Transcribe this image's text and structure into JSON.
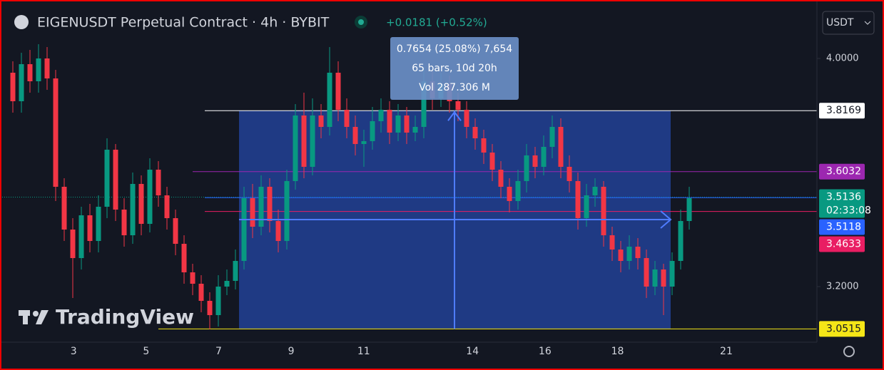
{
  "chart_data": {
    "type": "candlestick",
    "title": "EIGENUSDT Perpetual Contract · 4h · BYBIT",
    "change": "+0.0181 (+0.52%)",
    "currency": "USDT",
    "watermark": "TradingView",
    "up_color": "#089981",
    "down_color": "#f23645",
    "open": [
      3.95,
      3.85,
      3.98,
      3.92,
      4.0,
      3.93,
      3.55,
      3.4,
      3.3,
      3.45,
      3.36,
      3.48,
      3.68,
      3.47,
      3.38,
      3.56,
      3.42,
      3.61,
      3.52,
      3.44,
      3.35,
      3.25,
      3.21,
      3.15,
      3.1,
      3.2,
      3.22,
      3.29,
      3.51,
      3.41,
      3.55,
      3.43,
      3.36,
      3.57,
      3.8,
      3.62,
      3.8,
      3.76,
      3.95,
      3.82,
      3.76,
      3.7,
      3.71,
      3.78,
      3.82,
      3.74,
      3.8,
      3.74,
      3.76,
      3.92,
      3.86,
      3.91,
      3.85,
      3.82,
      3.76,
      3.72,
      3.67,
      3.61,
      3.55,
      3.5,
      3.57,
      3.66,
      3.62,
      3.69,
      3.76,
      3.62,
      3.57,
      3.44,
      3.52,
      3.55,
      3.38,
      3.33,
      3.29,
      3.34,
      3.3,
      3.2,
      3.26,
      3.2,
      3.29,
      3.43
    ],
    "high": [
      3.99,
      4.02,
      4.03,
      4.05,
      4.04,
      3.96,
      3.58,
      3.44,
      3.48,
      3.49,
      3.52,
      3.72,
      3.7,
      3.51,
      3.6,
      3.59,
      3.65,
      3.64,
      3.55,
      3.47,
      3.38,
      3.28,
      3.24,
      3.18,
      3.24,
      3.26,
      3.33,
      3.55,
      3.56,
      3.59,
      3.58,
      3.47,
      3.61,
      3.84,
      3.88,
      3.86,
      3.84,
      4.04,
      3.99,
      3.86,
      3.8,
      3.75,
      3.83,
      3.86,
      3.85,
      3.84,
      3.83,
      3.8,
      3.97,
      3.96,
      3.95,
      3.94,
      3.88,
      3.85,
      3.79,
      3.75,
      3.7,
      3.64,
      3.58,
      3.61,
      3.7,
      3.69,
      3.73,
      3.8,
      3.79,
      3.66,
      3.6,
      3.56,
      3.58,
      3.57,
      3.41,
      3.36,
      3.38,
      3.37,
      3.33,
      3.29,
      3.28,
      3.32,
      3.47,
      3.55
    ],
    "low": [
      3.81,
      3.81,
      3.88,
      3.88,
      3.89,
      3.5,
      3.36,
      3.16,
      3.26,
      3.32,
      3.32,
      3.44,
      3.43,
      3.34,
      3.35,
      3.38,
      3.39,
      3.48,
      3.4,
      3.31,
      3.21,
      3.17,
      3.11,
      3.05,
      3.06,
      3.17,
      3.19,
      3.26,
      3.37,
      3.38,
      3.39,
      3.32,
      3.33,
      3.54,
      3.58,
      3.59,
      3.72,
      3.73,
      3.78,
      3.72,
      3.66,
      3.62,
      3.68,
      3.74,
      3.7,
      3.71,
      3.7,
      3.71,
      3.72,
      3.82,
      3.83,
      3.81,
      3.78,
      3.72,
      3.68,
      3.63,
      3.57,
      3.51,
      3.46,
      3.47,
      3.53,
      3.58,
      3.59,
      3.65,
      3.58,
      3.53,
      3.4,
      3.41,
      3.48,
      3.34,
      3.29,
      3.25,
      3.26,
      3.26,
      3.16,
      3.17,
      3.1,
      3.17,
      3.26,
      3.4
    ],
    "close": [
      3.85,
      3.98,
      3.92,
      4.0,
      3.93,
      3.55,
      3.4,
      3.3,
      3.45,
      3.36,
      3.48,
      3.68,
      3.47,
      3.38,
      3.56,
      3.42,
      3.61,
      3.52,
      3.44,
      3.35,
      3.25,
      3.21,
      3.15,
      3.1,
      3.2,
      3.22,
      3.29,
      3.51,
      3.41,
      3.55,
      3.43,
      3.36,
      3.57,
      3.8,
      3.62,
      3.8,
      3.76,
      3.95,
      3.82,
      3.76,
      3.7,
      3.71,
      3.78,
      3.82,
      3.74,
      3.8,
      3.74,
      3.76,
      3.92,
      3.86,
      3.91,
      3.85,
      3.82,
      3.76,
      3.72,
      3.67,
      3.61,
      3.55,
      3.5,
      3.57,
      3.66,
      3.62,
      3.69,
      3.76,
      3.62,
      3.57,
      3.44,
      3.52,
      3.55,
      3.38,
      3.33,
      3.29,
      3.34,
      3.3,
      3.2,
      3.26,
      3.2,
      3.29,
      3.43,
      3.51
    ],
    "ylim": [
      3.005,
      4.205
    ],
    "yticks": [
      {
        "value": 3.2,
        "label": "3.2000"
      },
      {
        "value": 4,
        "label": "4.0000"
      }
    ],
    "xlim": [
      0.97,
      23.5
    ],
    "xticks": [
      3,
      5,
      7,
      9,
      11,
      14,
      16,
      18,
      21
    ],
    "levels": [
      {
        "value": 3.8169,
        "label": "3.8169",
        "color": "#ffffff"
      },
      {
        "value": 3.6032,
        "label": "3.6032",
        "color": "#9c27b0"
      },
      {
        "value": 3.5136,
        "label": "3.5136",
        "color": "#089981",
        "countdown": "02:33:08"
      },
      {
        "value": 3.5118,
        "label": "3.5118",
        "color": "#2962ff"
      },
      {
        "value": 3.4633,
        "label": "3.4633",
        "color": "#e91e63"
      },
      {
        "value": 3.0515,
        "label": "3.0515",
        "color": "#f5e617"
      }
    ],
    "measure": {
      "line1": "0.7654 (25.08%) 7,654",
      "line2": "65 bars, 10d 20h",
      "line3": "Vol 287.306 M"
    }
  }
}
